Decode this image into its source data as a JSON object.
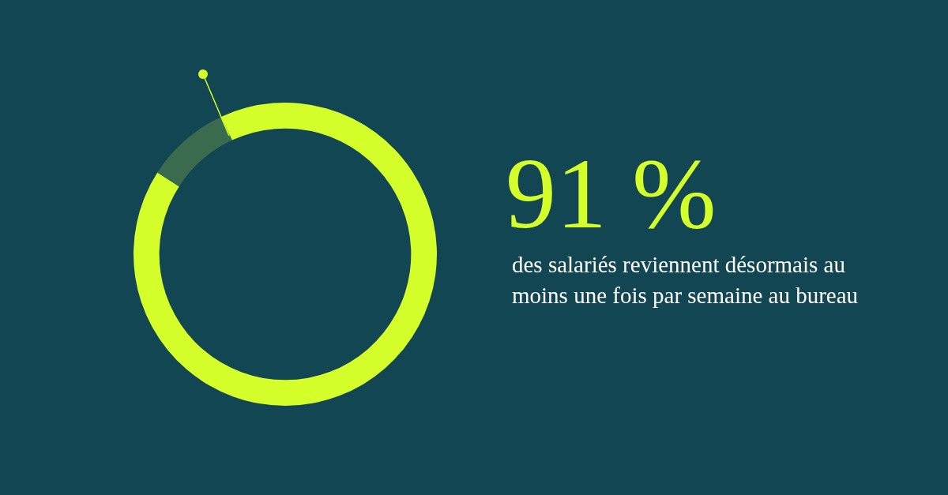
{
  "chart_data": {
    "type": "donut",
    "categories": [
      null,
      null
    ],
    "values": [
      91,
      9
    ],
    "colors": [
      "#d4ff2a",
      "#3b6b4e"
    ],
    "value_labels": [
      "91 %",
      null
    ],
    "annotations": [
      "des salariés reviennent désormais au moins une fois par semaine au bureau"
    ],
    "legend": false
  }
}
